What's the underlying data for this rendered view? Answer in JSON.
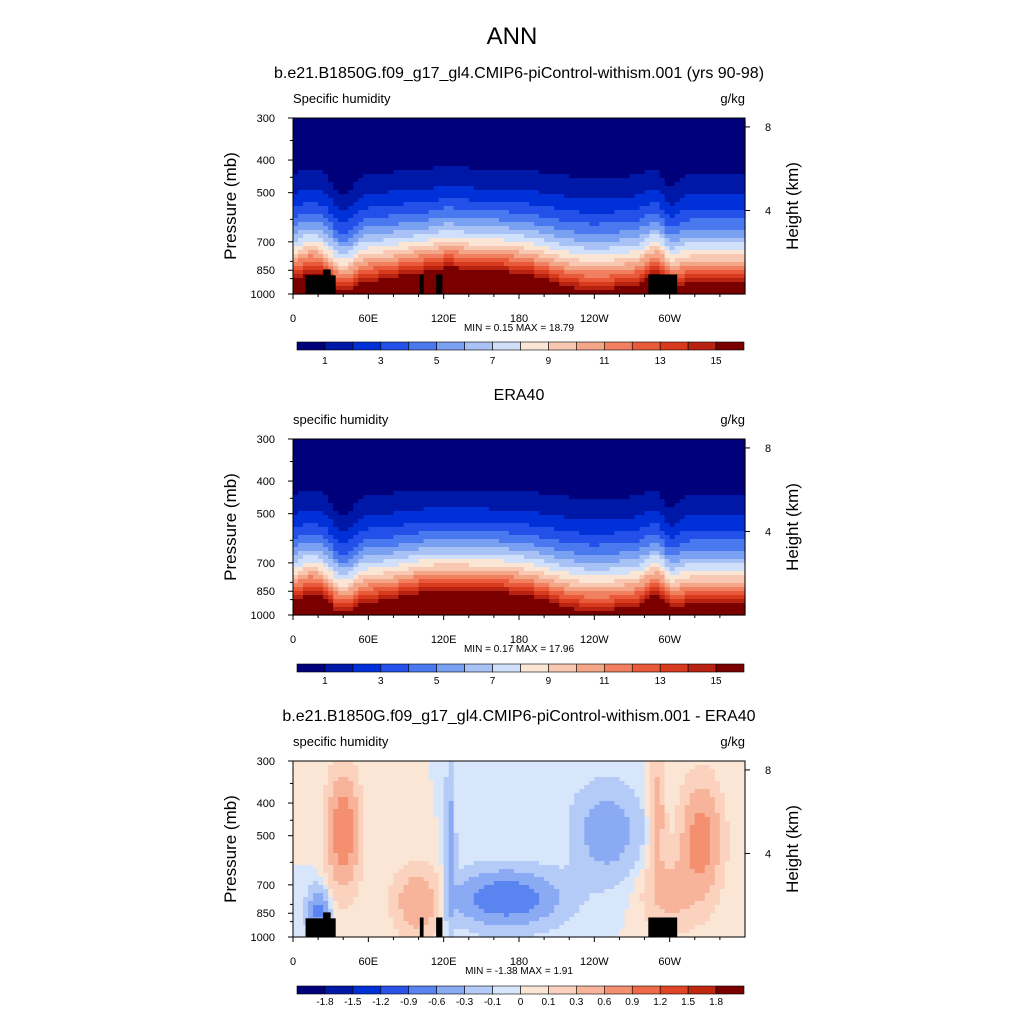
{
  "figure": {
    "title": "ANN",
    "colors": {
      "abs_levels": [
        "#00007a",
        "#0018a8",
        "#0030d8",
        "#2250e8",
        "#4a78ee",
        "#7aa0f2",
        "#a8c2f6",
        "#d0e0fa",
        "#fbe6d6",
        "#f8c8b2",
        "#f4a688",
        "#f08060",
        "#e85a3a",
        "#d83a1e",
        "#b82210",
        "#7a0000"
      ],
      "diff_levels": [
        "#00007a",
        "#0018a8",
        "#0030d8",
        "#2a54e8",
        "#5a84f0",
        "#8aaaf4",
        "#b4cbf8",
        "#d8e6fb",
        "#fbe6d6",
        "#fbd2bd",
        "#f8b49a",
        "#f49070",
        "#ee6a48",
        "#e04424",
        "#c02810",
        "#7a0000"
      ],
      "land": "#000000"
    }
  },
  "panels": [
    {
      "title": "b.e21.B1850G.f09_g17_gl4.CMIP6-piControl-withism.001 (yrs 90-98)",
      "var_label": "Specific humidity",
      "units": "g/kg",
      "min_max": "MIN =   0.15  MAX =  18.79",
      "colorbar_labels": [
        "1",
        "3",
        "5",
        "7",
        "9",
        "11",
        "13",
        "15"
      ]
    },
    {
      "title": "ERA40",
      "var_label": "specific humidity",
      "units": "g/kg",
      "min_max": "MIN =   0.17  MAX =  17.96",
      "colorbar_labels": [
        "1",
        "3",
        "5",
        "7",
        "9",
        "11",
        "13",
        "15"
      ]
    },
    {
      "title": "b.e21.B1850G.f09_g17_gl4.CMIP6-piControl-withism.001 - ERA40",
      "var_label": "specific humidity",
      "units": "g/kg",
      "min_max": "MIN =  -1.38  MAX =   1.91",
      "colorbar_labels": [
        "-1.8",
        "-1.5",
        "-1.2",
        "-0.9",
        "-0.6",
        "-0.3",
        "-0.1",
        "0",
        "0.1",
        "0.3",
        "0.6",
        "0.9",
        "1.2",
        "1.5",
        "1.8"
      ]
    }
  ],
  "chart_data": [
    {
      "type": "heatmap",
      "title": "b.e21.B1850G.f09_g17_gl4.CMIP6-piControl-withism.001 (yrs 90-98)",
      "variable": "Specific humidity",
      "units": "g/kg",
      "xlabel": "",
      "ylabel": "Pressure (mb)",
      "ylabel_right": "Height (km)",
      "x_ticks": [
        "0",
        "60E",
        "120E",
        "180",
        "120W",
        "60W"
      ],
      "x_tick_values": [
        0,
        60,
        120,
        180,
        240,
        300
      ],
      "xlim": [
        0,
        360
      ],
      "y_ticks": [
        "300",
        "400",
        "500",
        "700",
        "850",
        "1000"
      ],
      "y_tick_values": [
        300,
        400,
        500,
        700,
        850,
        1000
      ],
      "ylim": [
        1000,
        300
      ],
      "y_scale": "log",
      "right_ticks": [
        "4",
        "8"
      ],
      "right_tick_values": [
        4,
        8
      ],
      "contour_levels": [
        1,
        2,
        3,
        4,
        5,
        6,
        7,
        8,
        9,
        10,
        11,
        12,
        13,
        14,
        15
      ],
      "min": 0.15,
      "max": 18.79
    },
    {
      "type": "heatmap",
      "title": "ERA40",
      "variable": "specific humidity",
      "units": "g/kg",
      "xlabel": "",
      "ylabel": "Pressure (mb)",
      "ylabel_right": "Height (km)",
      "x_ticks": [
        "0",
        "60E",
        "120E",
        "180",
        "120W",
        "60W"
      ],
      "x_tick_values": [
        0,
        60,
        120,
        180,
        240,
        300
      ],
      "xlim": [
        0,
        360
      ],
      "y_ticks": [
        "300",
        "400",
        "500",
        "700",
        "850",
        "1000"
      ],
      "y_tick_values": [
        300,
        400,
        500,
        700,
        850,
        1000
      ],
      "ylim": [
        1000,
        300
      ],
      "y_scale": "log",
      "right_ticks": [
        "4",
        "8"
      ],
      "right_tick_values": [
        4,
        8
      ],
      "contour_levels": [
        1,
        2,
        3,
        4,
        5,
        6,
        7,
        8,
        9,
        10,
        11,
        12,
        13,
        14,
        15
      ],
      "min": 0.17,
      "max": 17.96
    },
    {
      "type": "heatmap",
      "title": "b.e21.B1850G.f09_g17_gl4.CMIP6-piControl-withism.001 - ERA40",
      "variable": "specific humidity",
      "units": "g/kg",
      "xlabel": "",
      "ylabel": "Pressure (mb)",
      "ylabel_right": "Height (km)",
      "x_ticks": [
        "0",
        "60E",
        "120E",
        "180",
        "120W",
        "60W"
      ],
      "x_tick_values": [
        0,
        60,
        120,
        180,
        240,
        300
      ],
      "xlim": [
        0,
        360
      ],
      "y_ticks": [
        "300",
        "400",
        "500",
        "700",
        "850",
        "1000"
      ],
      "y_tick_values": [
        300,
        400,
        500,
        700,
        850,
        1000
      ],
      "ylim": [
        1000,
        300
      ],
      "y_scale": "log",
      "right_ticks": [
        "4",
        "8"
      ],
      "right_tick_values": [
        4,
        8
      ],
      "contour_levels": [
        -1.8,
        -1.5,
        -1.2,
        -0.9,
        -0.6,
        -0.3,
        -0.1,
        0,
        0.1,
        0.3,
        0.6,
        0.9,
        1.2,
        1.5,
        1.8
      ],
      "min": -1.38,
      "max": 1.91
    }
  ]
}
